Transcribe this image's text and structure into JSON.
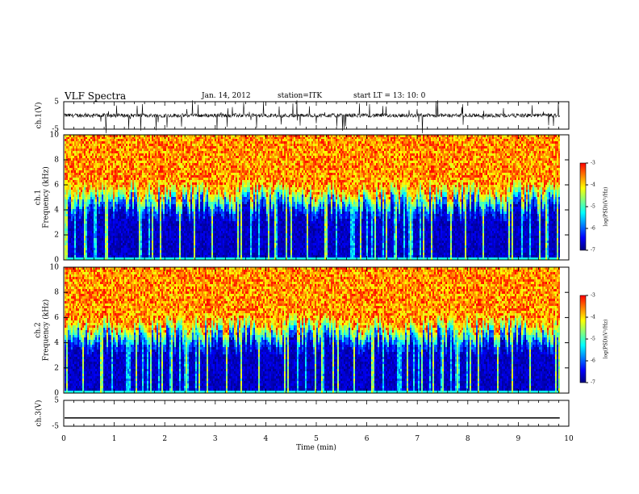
{
  "header": {
    "title": "VLF Spectra",
    "date": "Jan. 14, 2012",
    "station": "station=ITK",
    "start": "start LT = 13: 10: 0"
  },
  "chart_data": [
    {
      "type": "line",
      "ylabel": "ch.1(V)",
      "xlim": [
        0,
        10
      ],
      "ylim": [
        -5,
        5
      ],
      "yticks": [
        5,
        -5
      ],
      "baseline": 0,
      "description_values": {
        "typical_noise_band": [
          -1,
          1
        ],
        "spike_extremes": [
          -5,
          5
        ]
      }
    },
    {
      "type": "heatmap",
      "ylabel": "ch.1  Frequency (kHz)",
      "xlim": [
        0,
        10
      ],
      "ylim": [
        0,
        10
      ],
      "yticks": [
        0,
        2,
        4,
        6,
        8,
        10
      ],
      "data_end_x": 9.82,
      "colorbar": {
        "label": "log(PSD)(V²/Hz)",
        "range": [
          -7,
          -3
        ],
        "ticks": [
          -3,
          -4,
          -5,
          -6,
          -7
        ]
      }
    },
    {
      "type": "heatmap",
      "ylabel": "ch.2  Frequency (kHz)",
      "xlim": [
        0,
        10
      ],
      "ylim": [
        0,
        10
      ],
      "yticks": [
        0,
        2,
        4,
        6,
        8,
        10
      ],
      "data_end_x": 9.82,
      "colorbar": {
        "label": "log(PSD)(V²/Hz)",
        "range": [
          -7,
          -3
        ],
        "ticks": [
          -3,
          -4,
          -5,
          -6,
          -7
        ]
      }
    },
    {
      "type": "line",
      "ylabel": "ch.3(V)",
      "xlim": [
        0,
        10
      ],
      "ylim": [
        -5,
        5
      ],
      "yticks": [
        5,
        -5
      ],
      "constant_value": -1.8,
      "xlabel": "Time (min)",
      "xticks": [
        0,
        1,
        2,
        3,
        4,
        5,
        6,
        7,
        8,
        9,
        10
      ]
    }
  ],
  "colors": {
    "jet": [
      "#000080",
      "#0000ff",
      "#0080ff",
      "#00ffff",
      "#80ff80",
      "#ffff00",
      "#ff8000",
      "#ff0000"
    ]
  }
}
